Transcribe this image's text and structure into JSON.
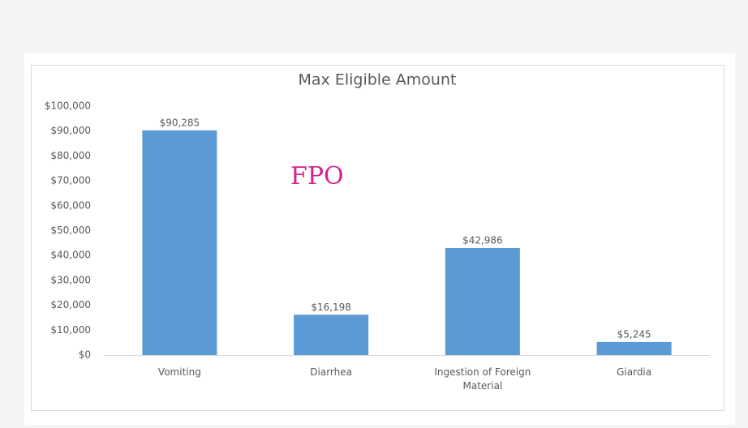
{
  "chart_data": {
    "type": "bar",
    "title": "Max Eligible Amount",
    "categories": [
      "Vomiting",
      "Diarrhea",
      "Ingestion of Foreign Material",
      "Giardia"
    ],
    "values": [
      90285,
      16198,
      42986,
      5245
    ],
    "value_labels": [
      "$90,285",
      "$16,198",
      "$42,986",
      "$5,245"
    ],
    "color": "#5b9bd5",
    "ylim": [
      0,
      100000
    ],
    "yticks": [
      {
        "value": 0,
        "label": "$0"
      },
      {
        "value": 10000,
        "label": "$10,000"
      },
      {
        "value": 20000,
        "label": "$20,000"
      },
      {
        "value": 30000,
        "label": "$30,000"
      },
      {
        "value": 40000,
        "label": "$40,000"
      },
      {
        "value": 50000,
        "label": "$50,000"
      },
      {
        "value": 60000,
        "label": "$60,000"
      },
      {
        "value": 70000,
        "label": "$70,000"
      },
      {
        "value": 80000,
        "label": "$80,000"
      },
      {
        "value": 90000,
        "label": "$90,000"
      },
      {
        "value": 100000,
        "label": "$100,000"
      }
    ],
    "annotation": "FPO"
  }
}
